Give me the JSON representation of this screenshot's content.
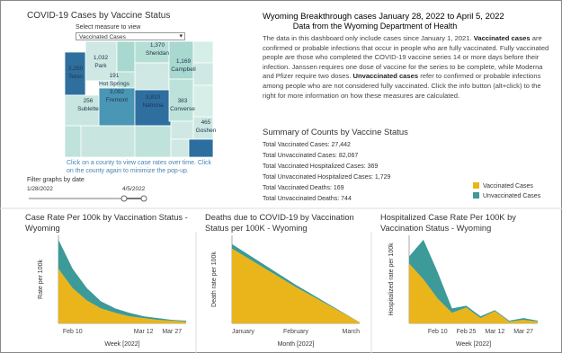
{
  "header": {
    "title": "Wyoming Breakthrough cases January 28, 2022 to April 5, 2022",
    "subtitle": "Data from the Wyoming Department of Health"
  },
  "description": [
    {
      "text": "The data in this dashboard only include cases since January 1, 2021. ",
      "bold": false
    },
    {
      "text": "Vaccinated cases",
      "bold": true
    },
    {
      "text": " are confirmed or probable infections that occur in people who are fully vaccinated. Fully vaccinated people are those who completed the COVID-19 vaccine series 14 or more days before their infection. Janssen requires one dose of vaccine for the series to be complete, while Moderna and Pfizer require two doses. ",
      "bold": false
    },
    {
      "text": "Unvaccinated cases",
      "bold": true
    },
    {
      "text": " refer to confirmed or probable infections among people who are not considered fully vaccinated. Click the info button (alt+click) to the right for more information on how these measures are calculated.",
      "bold": false
    }
  ],
  "map": {
    "title": "COVID-19 Cases by Vaccine Status",
    "measure_prompt": "Select measure to view",
    "measure_selected": "Vaccinated Cases",
    "counties": [
      {
        "name": "Sheridan",
        "value": "1,370"
      },
      {
        "name": "Park",
        "value": "1,032"
      },
      {
        "name": "Campbell",
        "value": "1,169"
      },
      {
        "name": "Teton",
        "value": "3,250"
      },
      {
        "name": "Hot Springs",
        "value": "191"
      },
      {
        "name": "Fremont",
        "value": "3,092"
      },
      {
        "name": "Natrona",
        "value": "3,810"
      },
      {
        "name": "Sublette",
        "value": "256"
      },
      {
        "name": "Converse",
        "value": "383"
      },
      {
        "name": "Goshen",
        "value": "465"
      }
    ],
    "note": "Click on a county to view case rates over time. Click on the county again to minimize the pop-up."
  },
  "date_filter": {
    "label": "Filter graphs by date",
    "start": "1/28/2022",
    "end": "4/5/2022"
  },
  "summary": {
    "title": "Summary of Counts by Vaccine Status",
    "lines": [
      "Total Vaccinated Cases: 27,442",
      "Total Unvaccinated Cases: 82,067",
      "Total Vaccinated Hospitalized Cases: 369",
      "Total Unvaccinated Hospitalized Cases: 1,729",
      "Total Vaccinated Deaths: 169",
      "Total Unvaccinated Deaths: 744"
    ]
  },
  "chart_data": [
    {
      "type": "area",
      "stacked": true,
      "title": "Case Rate Per 100k by Vaccination Status - Wyoming",
      "x_label": "Week [2022]",
      "y_label": "Rate per 100k",
      "categories": [
        null,
        "Feb 10",
        null,
        null,
        null,
        null,
        "Mar 12",
        null,
        "Mar 27",
        null
      ],
      "ylim": [
        0,
        100
      ],
      "series": [
        {
          "name": "Vaccinated Cases",
          "color": "#e9b51a",
          "values": [
            62,
            40,
            26,
            17,
            12,
            8,
            6,
            4,
            3,
            2
          ]
        },
        {
          "name": "Unvaccinated Cases",
          "color": "#3c9a98",
          "values": [
            33,
            22,
            14,
            8,
            5,
            4,
            2,
            2,
            1,
            1
          ]
        }
      ]
    },
    {
      "type": "area",
      "stacked": true,
      "title": "Deaths due to COVID-19 by Vaccination Status per 100K - Wyoming",
      "x_label": "Month [2022]",
      "y_label": "Death rate per 100k",
      "categories": [
        "January",
        "February",
        "March"
      ],
      "ylim": [
        0,
        80
      ],
      "series": [
        {
          "name": "Vaccinated Cases",
          "color": "#e9b51a",
          "values": [
            68,
            33,
            1
          ]
        },
        {
          "name": "Unvaccinated Cases",
          "color": "#3c9a98",
          "values": [
            4,
            2,
            0
          ]
        }
      ]
    },
    {
      "type": "area",
      "stacked": true,
      "title": "Hospitalized Case Rate Per 100K by Vaccination Status - Wyoming",
      "x_label": "Week [2022]",
      "y_label": "Hospitalized rate per 100k",
      "categories": [
        null,
        null,
        "Feb 10",
        null,
        "Feb 25",
        null,
        "Mar 12",
        null,
        "Mar 27",
        null
      ],
      "ylim": [
        0,
        100
      ],
      "series": [
        {
          "name": "Vaccinated Cases",
          "color": "#e9b51a",
          "values": [
            68,
            50,
            28,
            12,
            18,
            6,
            14,
            2,
            4,
            2
          ]
        },
        {
          "name": "Unvaccinated Cases",
          "color": "#3c9a98",
          "values": [
            8,
            45,
            30,
            5,
            2,
            2,
            1,
            1,
            2,
            1
          ]
        }
      ]
    }
  ]
}
